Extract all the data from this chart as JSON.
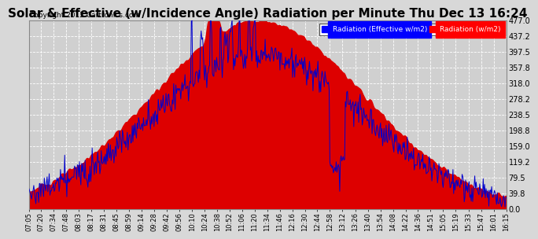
{
  "title": "Solar & Effective (w/Incidence Angle) Radiation per Minute Thu Dec 13 16:24",
  "copyright": "Copyright 2012 Cartronics.com",
  "legend_blue": "Radiation (Effective w/m2)",
  "legend_red": "Radiation (w/m2)",
  "ylim": [
    0.0,
    477.0
  ],
  "yticks": [
    0.0,
    39.8,
    79.5,
    119.2,
    159.0,
    198.8,
    238.5,
    278.2,
    318.0,
    357.8,
    397.5,
    437.2,
    477.0
  ],
  "background_color": "#d8d8d8",
  "plot_bg_color": "#d0d0d0",
  "grid_color": "#bbbbbb",
  "fill_color": "#dd0000",
  "line_color": "#0000cc",
  "title_fontsize": 11,
  "x_labels": [
    "07:05",
    "07:20",
    "07:34",
    "07:48",
    "08:03",
    "08:17",
    "08:31",
    "08:45",
    "08:59",
    "09:14",
    "09:28",
    "09:42",
    "09:56",
    "10:10",
    "10:24",
    "10:38",
    "10:52",
    "11:06",
    "11:20",
    "11:34",
    "11:46",
    "12:16",
    "12:30",
    "12:44",
    "12:58",
    "13:12",
    "13:26",
    "13:40",
    "13:54",
    "14:08",
    "14:22",
    "14:36",
    "14:51",
    "15:05",
    "15:19",
    "15:33",
    "15:47",
    "16:01",
    "16:15"
  ]
}
